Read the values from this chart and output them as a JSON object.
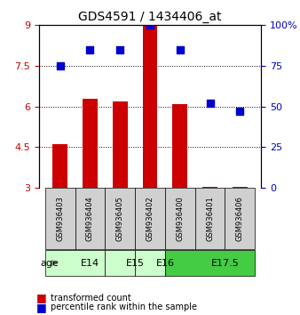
{
  "title": "GDS4591 / 1434406_at",
  "samples": [
    "GSM936403",
    "GSM936404",
    "GSM936405",
    "GSM936402",
    "GSM936400",
    "GSM936401",
    "GSM936406"
  ],
  "bar_values": [
    4.6,
    6.3,
    6.2,
    9.0,
    6.1,
    3.05,
    3.05
  ],
  "scatter_values": [
    75,
    85,
    85,
    100,
    85,
    52,
    47
  ],
  "bar_color": "#cc0000",
  "scatter_color": "#0000cc",
  "ylim_left": [
    3,
    9
  ],
  "ylim_right": [
    0,
    100
  ],
  "yticks_left": [
    3,
    4.5,
    6,
    7.5,
    9
  ],
  "yticks_right": [
    0,
    25,
    50,
    75,
    100
  ],
  "grid_vals": [
    4.5,
    6.0,
    7.5
  ],
  "age_groups": [
    {
      "label": "E14",
      "start": 0,
      "end": 2,
      "color": "#ccffcc"
    },
    {
      "label": "E15",
      "start": 2,
      "end": 3,
      "color": "#ccffcc"
    },
    {
      "label": "E16",
      "start": 3,
      "end": 4,
      "color": "#ccffcc"
    },
    {
      "label": "E17.5",
      "start": 4,
      "end": 7,
      "color": "#44cc44"
    }
  ],
  "legend_bar_label": "transformed count",
  "legend_scatter_label": "percentile rank within the sample",
  "age_label": "age",
  "bar_width": 0.5
}
